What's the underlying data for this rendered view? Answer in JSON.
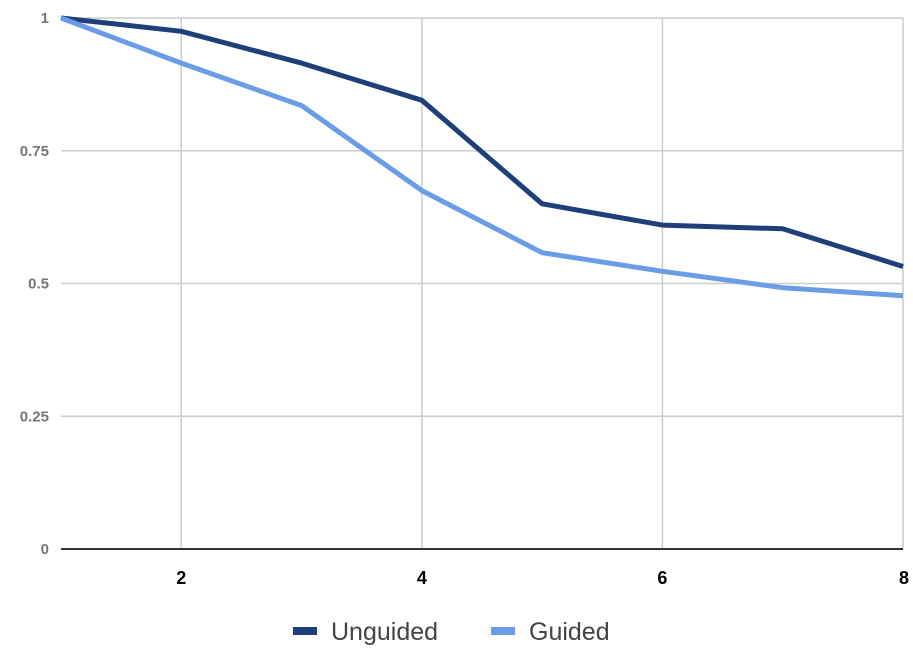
{
  "chart_data": {
    "type": "line",
    "x": [
      1,
      2,
      3,
      4,
      5,
      6,
      7,
      8
    ],
    "xlim": [
      1,
      8
    ],
    "ylim": [
      0,
      1
    ],
    "x_ticks": [
      "2",
      "4",
      "6",
      "8"
    ],
    "y_ticks": [
      "0",
      "0.25",
      "0.5",
      "0.75",
      "1"
    ],
    "grid": true,
    "legend_position": "bottom",
    "series": [
      {
        "name": "Unguided",
        "color": "#1f3f7a",
        "values": [
          1.0,
          0.975,
          0.915,
          0.845,
          0.65,
          0.61,
          0.603,
          0.532
        ]
      },
      {
        "name": "Guided",
        "color": "#6b9ce6",
        "values": [
          1.0,
          0.915,
          0.835,
          0.675,
          0.558,
          0.523,
          0.492,
          0.477
        ]
      }
    ]
  }
}
